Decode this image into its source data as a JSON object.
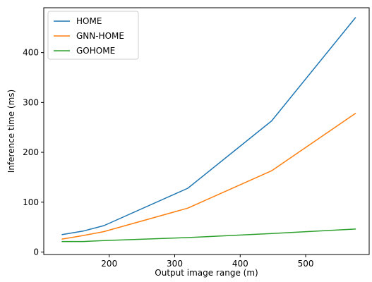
{
  "chart_data": {
    "type": "line",
    "xlabel": "Output image range (m)",
    "ylabel": "Inference time (ms)",
    "xlim": [
      100,
      597
    ],
    "ylim": [
      -5,
      490
    ],
    "xticks": [
      200,
      300,
      400,
      500
    ],
    "yticks": [
      0,
      100,
      200,
      300,
      400
    ],
    "grid": false,
    "legend_position": "top-left",
    "series": [
      {
        "name": "HOME",
        "color": "#1f77b4",
        "x": [
          128,
          160,
          192,
          320,
          448,
          576
        ],
        "y": [
          35,
          42,
          53,
          128,
          263,
          470
        ]
      },
      {
        "name": "GNN-HOME",
        "color": "#ff7f0e",
        "x": [
          128,
          160,
          192,
          320,
          448,
          576
        ],
        "y": [
          26,
          33,
          41,
          88,
          163,
          278
        ]
      },
      {
        "name": "GOHOME",
        "color": "#2ca02c",
        "x": [
          128,
          160,
          192,
          320,
          448,
          576
        ],
        "y": [
          21,
          21,
          23,
          29,
          37,
          46
        ]
      }
    ]
  }
}
